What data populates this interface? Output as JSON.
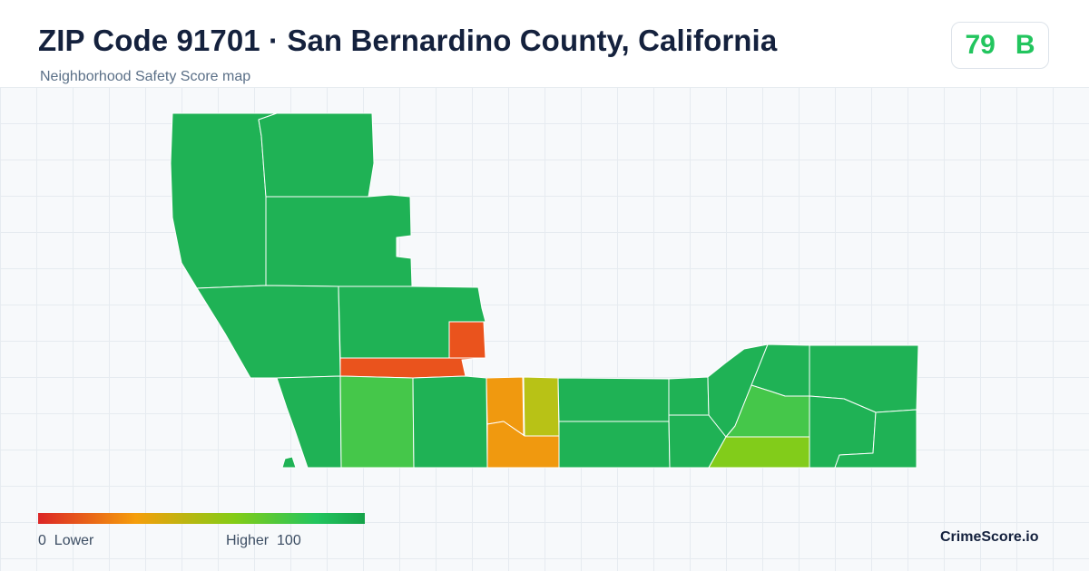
{
  "header": {
    "title": "ZIP Code 91701 · San Bernardino County, California",
    "subtitle": "Neighborhood Safety Score map"
  },
  "score": {
    "value": "79",
    "grade": "B",
    "color": "#22c55e"
  },
  "legend": {
    "min_label": "0  Lower",
    "max_label": "Higher  100",
    "low_color": "#dc2626",
    "high_color": "#16a34a"
  },
  "brand": "CrimeScore.io",
  "map": {
    "palette": {
      "high": "#1fb255",
      "good": "#45c74a",
      "fair": "#82cc1a",
      "mid": "#b8c216",
      "moderate": "#f0990f",
      "low": "#ea531d"
    }
  }
}
